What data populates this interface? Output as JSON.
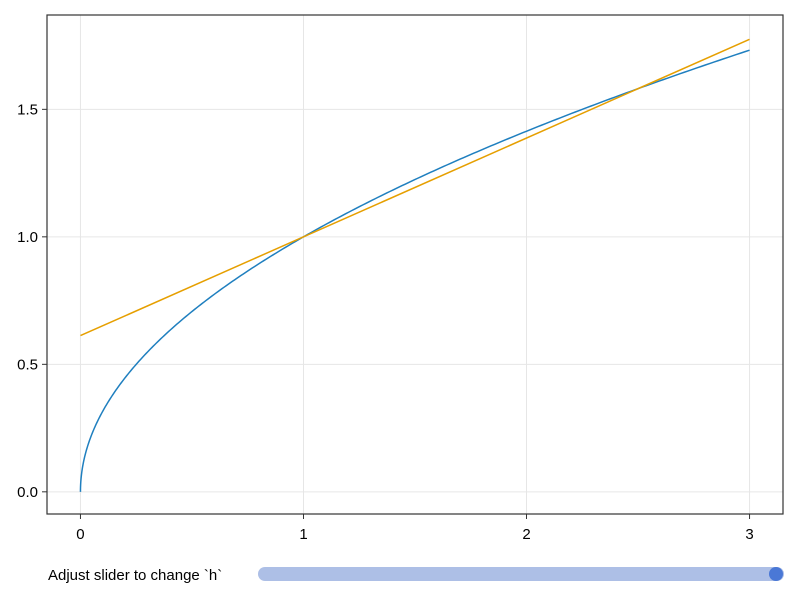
{
  "chart_data": {
    "type": "line",
    "title": "",
    "xlabel": "",
    "ylabel": "",
    "xlim": [
      -0.15,
      3.15
    ],
    "ylim": [
      -0.087,
      1.87
    ],
    "grid": true,
    "x_ticks": [
      "0",
      "1",
      "2",
      "3"
    ],
    "x_tick_values": [
      0,
      1,
      2,
      3
    ],
    "y_ticks": [
      "0.0",
      "0.5",
      "1.0",
      "1.5"
    ],
    "y_tick_values": [
      0,
      0.5,
      1.0,
      1.5
    ],
    "series": [
      {
        "function": "sqrt(x)",
        "x_range": [
          0,
          3
        ],
        "color": "#1f7fbf",
        "points": [
          [
            0,
            0
          ],
          [
            0.25,
            0.5
          ],
          [
            0.5,
            0.707
          ],
          [
            1,
            1
          ],
          [
            1.5,
            1.225
          ],
          [
            2,
            1.414
          ],
          [
            2.5,
            1.581
          ],
          [
            3,
            1.732
          ]
        ]
      },
      {
        "function": "secant line through (1,1) and (1+h, sqrt(1+h))",
        "x_range": [
          0,
          3
        ],
        "color": "#e69f00",
        "points": [
          [
            0,
            0.613
          ],
          [
            1,
            1
          ],
          [
            2.5,
            1.581
          ],
          [
            3,
            1.775
          ]
        ]
      }
    ]
  },
  "slider": {
    "label": "Adjust slider to change `h`",
    "value": 1.5,
    "fraction": 1.0,
    "track_color": "#adbfe6",
    "knob_color": "#4a78d6"
  }
}
